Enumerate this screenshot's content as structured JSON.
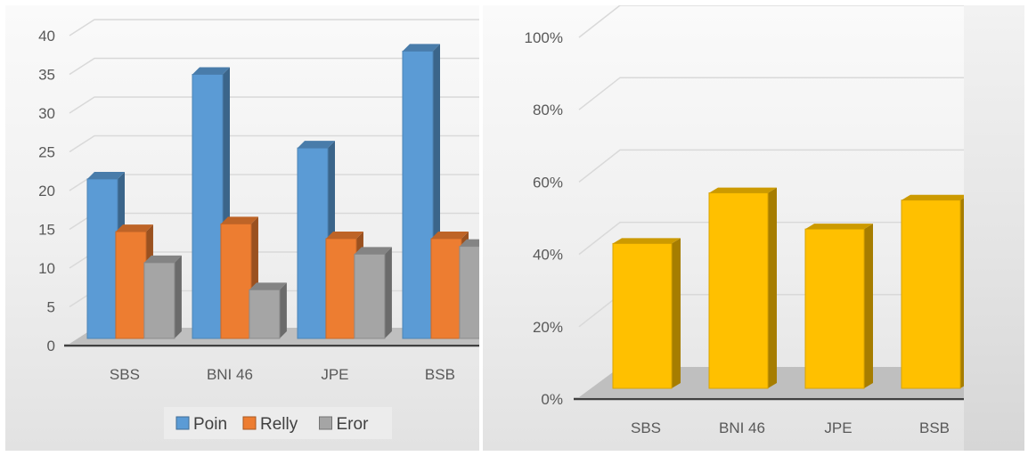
{
  "chart_data": [
    {
      "type": "bar",
      "categories": [
        "SBS",
        "BNI 46",
        "JPE",
        "BSB"
      ],
      "series": [
        {
          "name": "Poin",
          "values": [
            21.5,
            35,
            25.5,
            38
          ],
          "color": "#5b9bd5"
        },
        {
          "name": "Relly",
          "values": [
            14.7,
            15.7,
            13.8,
            13.8
          ],
          "color": "#ed7d31"
        },
        {
          "name": "Eror",
          "values": [
            10.7,
            7.2,
            11.8,
            12.8
          ],
          "color": "#a5a5a5"
        }
      ],
      "yticks": [
        "0",
        "5",
        "10",
        "15",
        "20",
        "25",
        "30",
        "35",
        "40"
      ],
      "ylim": [
        0,
        40
      ],
      "grid": true,
      "legend": "bottom",
      "style": "3d-clustered-column"
    },
    {
      "type": "bar",
      "categories": [
        "SBS",
        "BNI 46",
        "JPE",
        "BSB"
      ],
      "series": [
        {
          "values": [
            0.43,
            0.57,
            0.47,
            0.55
          ],
          "color": "#ffc000"
        }
      ],
      "yticks": [
        "0%",
        "20%",
        "40%",
        "60%",
        "80%",
        "100%"
      ],
      "ylim": [
        0,
        1
      ],
      "grid": true,
      "legend": "none",
      "style": "3d-column"
    }
  ]
}
